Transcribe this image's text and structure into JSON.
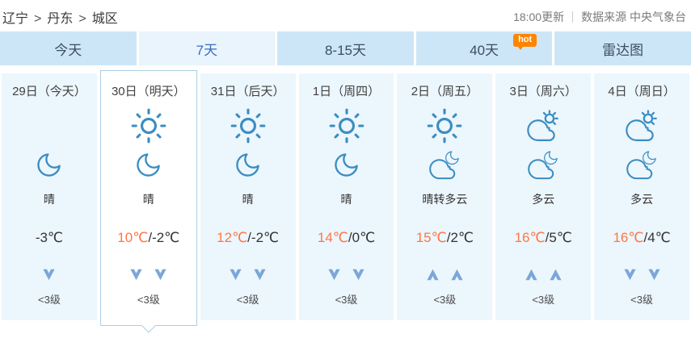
{
  "breadcrumb": {
    "items": [
      "辽宁",
      "丹东",
      "城区"
    ],
    "separator": ">"
  },
  "header": {
    "update_time": "18:00更新",
    "data_source": "数据来源 中央气象台"
  },
  "tabs": [
    {
      "label": "今天",
      "active": false
    },
    {
      "label": "7天",
      "active": true
    },
    {
      "label": "8-15天",
      "active": false
    },
    {
      "label": "40天",
      "active": false,
      "badge": "hot"
    },
    {
      "label": "雷达图",
      "active": false
    }
  ],
  "forecast_days": [
    {
      "date": "29日（今天）",
      "day_icon": "",
      "night_icon": "moon",
      "condition": "晴",
      "temp_high": "",
      "temp_sep": "",
      "temp_low": "-3℃",
      "wind_arrows": [
        "down"
      ],
      "wind_level": "<3级",
      "selected": false
    },
    {
      "date": "30日（明天）",
      "day_icon": "sun",
      "night_icon": "moon",
      "condition": "晴",
      "temp_high": "10℃",
      "temp_sep": "/",
      "temp_low": "-2℃",
      "wind_arrows": [
        "down",
        "down"
      ],
      "wind_level": "<3级",
      "selected": true
    },
    {
      "date": "31日（后天）",
      "day_icon": "sun",
      "night_icon": "moon",
      "condition": "晴",
      "temp_high": "12℃",
      "temp_sep": "/",
      "temp_low": "-2℃",
      "wind_arrows": [
        "down",
        "down"
      ],
      "wind_level": "<3级",
      "selected": false
    },
    {
      "date": "1日（周四）",
      "day_icon": "sun",
      "night_icon": "moon",
      "condition": "晴",
      "temp_high": "14℃",
      "temp_sep": "/",
      "temp_low": "0℃",
      "wind_arrows": [
        "down",
        "down"
      ],
      "wind_level": "<3级",
      "selected": false
    },
    {
      "date": "2日（周五）",
      "day_icon": "sun",
      "night_icon": "cloud-moon",
      "condition": "晴转多云",
      "temp_high": "15℃",
      "temp_sep": "/",
      "temp_low": "2℃",
      "wind_arrows": [
        "up",
        "up"
      ],
      "wind_level": "<3级",
      "selected": false
    },
    {
      "date": "3日（周六）",
      "day_icon": "cloud-sun",
      "night_icon": "cloud-moon",
      "condition": "多云",
      "temp_high": "16℃",
      "temp_sep": "/",
      "temp_low": "5℃",
      "wind_arrows": [
        "up",
        "up"
      ],
      "wind_level": "<3级",
      "selected": false
    },
    {
      "date": "4日（周日）",
      "day_icon": "cloud-sun",
      "night_icon": "cloud-moon",
      "condition": "多云",
      "temp_high": "16℃",
      "temp_sep": "/",
      "temp_low": "4℃",
      "wind_arrows": [
        "down",
        "down"
      ],
      "wind_level": "<3级",
      "selected": false
    }
  ],
  "colors": {
    "icon_stroke": "#3a8dc1",
    "temp_high_orange": "#ff7643",
    "tab_active_blue": "#3b6cc0",
    "hot_badge_orange": "#ff8400",
    "wind_arrow_blue": "#7aa7d8",
    "selected_border": "#abcfe5"
  }
}
